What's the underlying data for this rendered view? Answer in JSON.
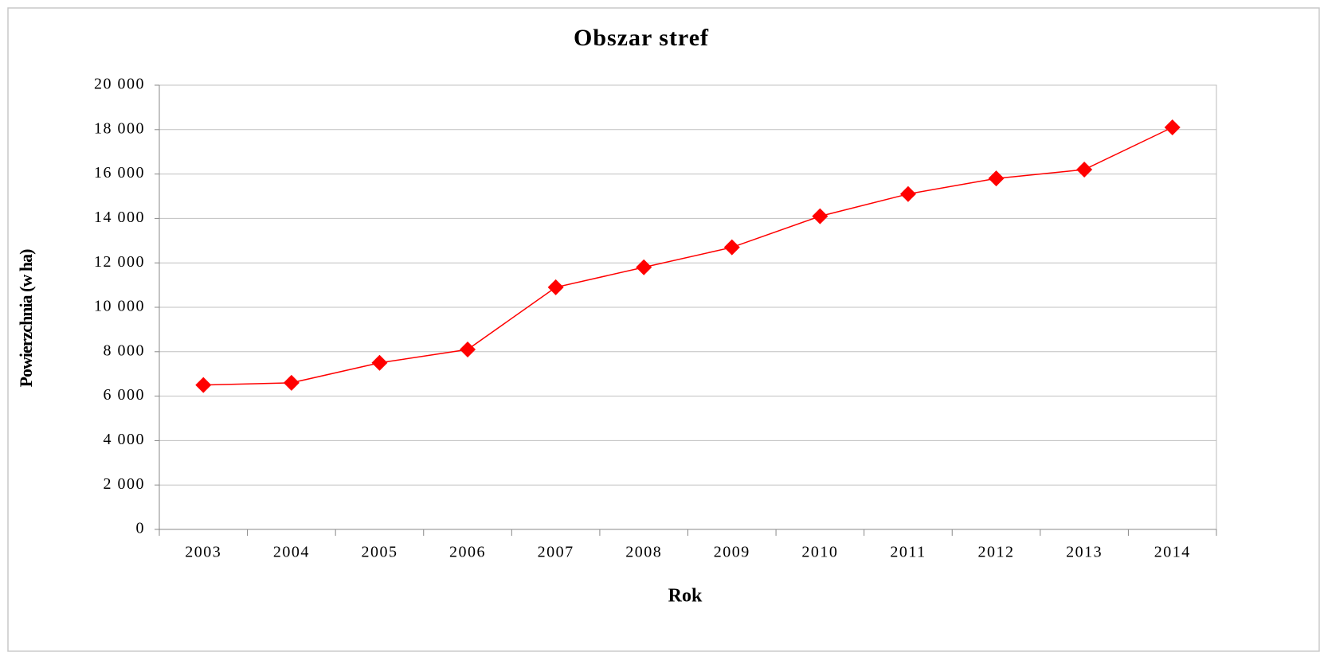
{
  "chart_data": {
    "type": "line",
    "title": "Obszar stref",
    "x_label": "Rok",
    "y_label": "Powierzchnia (w ha)",
    "categories": [
      "2003",
      "2004",
      "2005",
      "2006",
      "2007",
      "2008",
      "2009",
      "2010",
      "2011",
      "2012",
      "2013",
      "2014"
    ],
    "series": [
      {
        "name": "Obszar stref",
        "color": "#ff0000",
        "values": [
          6500,
          6600,
          7500,
          8100,
          10900,
          11800,
          12700,
          14100,
          15100,
          15800,
          16200,
          18100
        ]
      }
    ],
    "ylim": [
      0,
      20000
    ],
    "yticks": [
      0,
      {
        "value": 2000,
        "label": "2 000"
      },
      {
        "value": 4000,
        "label": "4 000"
      },
      {
        "value": 6000,
        "label": "6 000"
      },
      {
        "value": 8000,
        "label": "8 000"
      },
      {
        "value": 10000,
        "label": "10 000"
      },
      {
        "value": 12000,
        "label": "12 000"
      },
      {
        "value": 14000,
        "label": "14 000"
      },
      {
        "value": 16000,
        "label": "16 000"
      },
      {
        "value": 18000,
        "label": "18 000"
      },
      {
        "value": 20000,
        "label": "20 000"
      }
    ],
    "grid": true
  }
}
